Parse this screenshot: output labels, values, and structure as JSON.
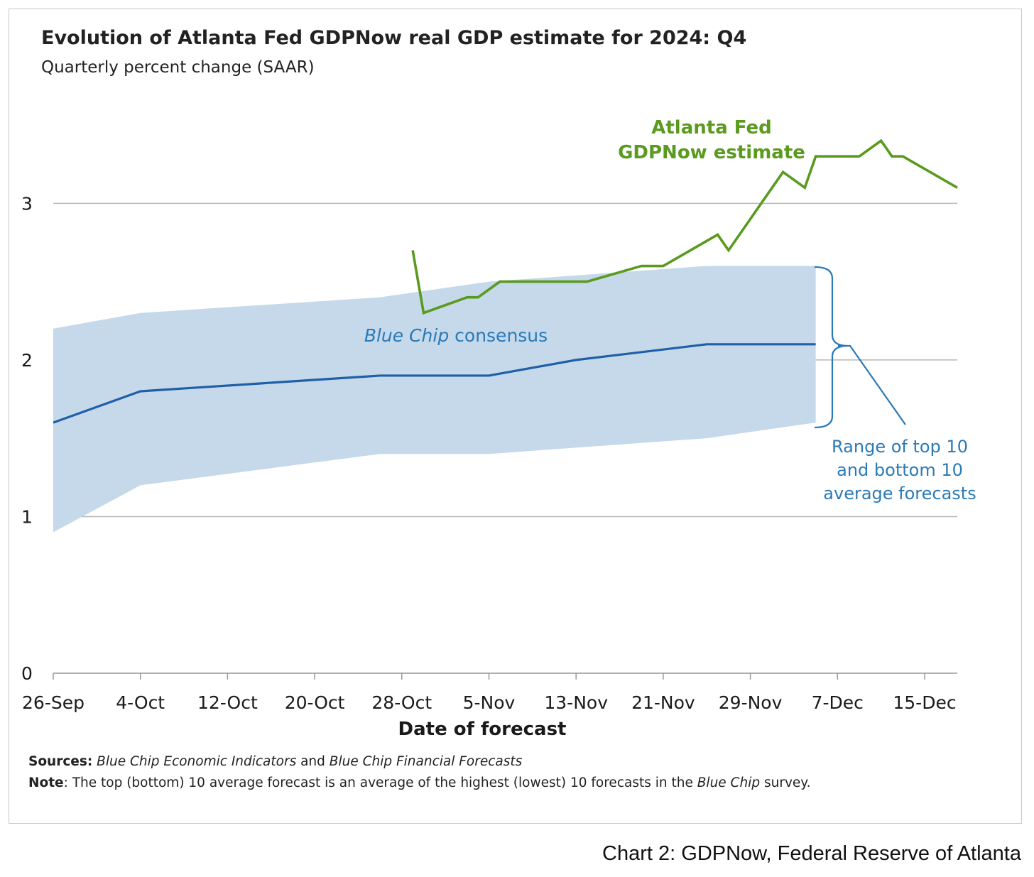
{
  "chart": {
    "title": "Evolution of Atlanta Fed GDPNow real GDP estimate for 2024: Q4",
    "subtitle": "Quarterly percent change (SAAR)",
    "xlabel": "Date of forecast"
  },
  "annotations": {
    "gdpnow_line1": "Atlanta Fed",
    "gdpnow_line2": "GDPNow estimate",
    "bluechip_italic": "Blue Chip",
    "bluechip_rest": " consensus",
    "range_line1": "Range of top 10",
    "range_line2": "and bottom 10",
    "range_line3": "average forecasts"
  },
  "footer": {
    "sources_label": "Sources:",
    "sources_italic1": "Blue Chip Economic Indicators",
    "sources_and": " and ",
    "sources_italic2": "Blue Chip Financial Forecasts",
    "note_label": "Note",
    "note_text1": ": The top (bottom) 10 average forecast is an average of the highest (lowest) 10 forecasts in the ",
    "note_italic": "Blue Chip",
    "note_text2": " survey."
  },
  "caption": "Chart 2: GDPNow, Federal Reserve of Atlanta",
  "colors": {
    "gdpnow": "#5a9a1e",
    "consensus": "#1f5fa8",
    "range_fill": "#c5d9ea",
    "range_label": "#2a7ab8",
    "grid": "#b8b8b8"
  },
  "chart_data": {
    "type": "line",
    "x_axis": {
      "start": "2024-09-26",
      "end": "2024-12-18",
      "tick_labels": [
        "26-Sep",
        "4-Oct",
        "12-Oct",
        "20-Oct",
        "28-Oct",
        "5-Nov",
        "13-Nov",
        "21-Nov",
        "29-Nov",
        "7-Dec",
        "15-Dec"
      ],
      "tick_dates": [
        "2024-09-26",
        "2024-10-04",
        "2024-10-12",
        "2024-10-20",
        "2024-10-28",
        "2024-11-05",
        "2024-11-13",
        "2024-11-21",
        "2024-11-29",
        "2024-12-07",
        "2024-12-15"
      ]
    },
    "y_axis": {
      "ylim": [
        0,
        3.6
      ],
      "ticks": [
        0,
        1,
        2,
        3
      ],
      "grid": true
    },
    "series": [
      {
        "name": "Atlanta Fed GDPNow estimate",
        "kind": "line",
        "points": [
          [
            "2024-10-29",
            2.7
          ],
          [
            "2024-10-30",
            2.3
          ],
          [
            "2024-11-01",
            2.35
          ],
          [
            "2024-11-03",
            2.4
          ],
          [
            "2024-11-04",
            2.4
          ],
          [
            "2024-11-06",
            2.5
          ],
          [
            "2024-11-14",
            2.5
          ],
          [
            "2024-11-19",
            2.6
          ],
          [
            "2024-11-21",
            2.6
          ],
          [
            "2024-11-26",
            2.8
          ],
          [
            "2024-11-27",
            2.7
          ],
          [
            "2024-12-02",
            3.2
          ],
          [
            "2024-12-04",
            3.1
          ],
          [
            "2024-12-05",
            3.3
          ],
          [
            "2024-12-09",
            3.3
          ],
          [
            "2024-12-11",
            3.4
          ],
          [
            "2024-12-12",
            3.3
          ],
          [
            "2024-12-13",
            3.3
          ],
          [
            "2024-12-18",
            3.1
          ]
        ]
      },
      {
        "name": "Blue Chip consensus",
        "kind": "line",
        "points": [
          [
            "2024-09-26",
            1.6
          ],
          [
            "2024-10-04",
            1.8
          ],
          [
            "2024-10-15",
            1.85
          ],
          [
            "2024-10-26",
            1.9
          ],
          [
            "2024-11-05",
            1.9
          ],
          [
            "2024-11-13",
            2.0
          ],
          [
            "2024-11-25",
            2.1
          ],
          [
            "2024-12-05",
            2.1
          ]
        ]
      },
      {
        "name": "Range of top 10 and bottom 10 average forecasts",
        "kind": "band",
        "upper": [
          [
            "2024-09-26",
            2.2
          ],
          [
            "2024-10-04",
            2.3
          ],
          [
            "2024-10-26",
            2.4
          ],
          [
            "2024-11-05",
            2.5
          ],
          [
            "2024-11-25",
            2.6
          ],
          [
            "2024-12-05",
            2.6
          ]
        ],
        "lower": [
          [
            "2024-09-26",
            0.9
          ],
          [
            "2024-10-04",
            1.2
          ],
          [
            "2024-10-26",
            1.4
          ],
          [
            "2024-11-05",
            1.4
          ],
          [
            "2024-11-25",
            1.5
          ],
          [
            "2024-12-05",
            1.6
          ]
        ]
      }
    ]
  }
}
